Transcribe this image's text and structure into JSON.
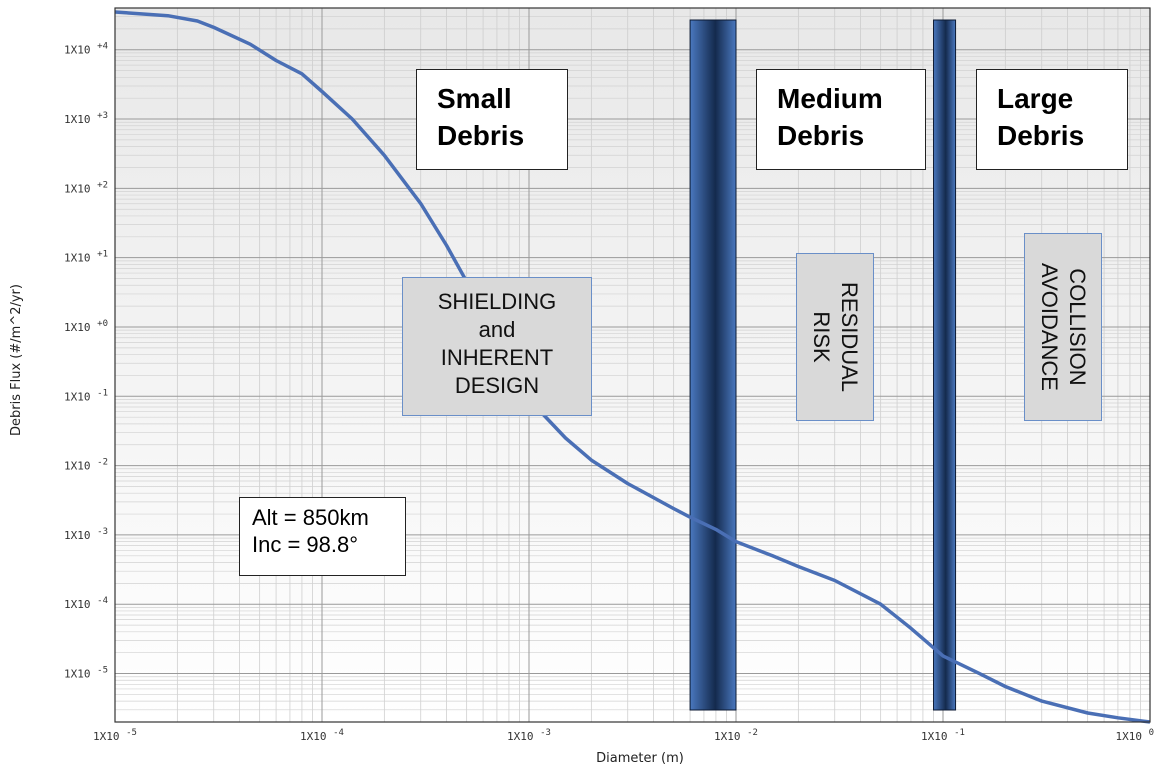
{
  "chart_data": {
    "type": "line",
    "title": "",
    "xlabel": "Diameter (m)",
    "ylabel": "Debris Flux (#/m^2/yr)",
    "xscale": "log",
    "yscale": "log",
    "xlim": [
      1e-05,
      1
    ],
    "ylim": [
      2e-06,
      40000
    ],
    "grid": true,
    "x_ticks": [
      {
        "value": 1e-05,
        "label": "1X10 -5"
      },
      {
        "value": 0.0001,
        "label": "1X10 -4"
      },
      {
        "value": 0.001,
        "label": "1X10 -3"
      },
      {
        "value": 0.01,
        "label": "1X10 -2"
      },
      {
        "value": 0.1,
        "label": "1X10 -1"
      },
      {
        "value": 1,
        "label": "1X10 0"
      }
    ],
    "y_ticks": [
      {
        "value": 10000,
        "label": "1X10 +4"
      },
      {
        "value": 1000,
        "label": "1X10 +3"
      },
      {
        "value": 100,
        "label": "1X10 +2"
      },
      {
        "value": 10,
        "label": "1X10 +1"
      },
      {
        "value": 1,
        "label": "1X10 +0"
      },
      {
        "value": 0.1,
        "label": "1X10 -1"
      },
      {
        "value": 0.01,
        "label": "1X10 -2"
      },
      {
        "value": 0.001,
        "label": "1X10 -3"
      },
      {
        "value": 0.0001,
        "label": "1X10 -4"
      },
      {
        "value": 1e-05,
        "label": "1X10 -5"
      }
    ],
    "series": [
      {
        "color": "#4a6fb5",
        "x": [
          1e-05,
          1.8e-05,
          2.5e-05,
          3e-05,
          4.5e-05,
          6e-05,
          8e-05,
          0.0001,
          0.00014,
          0.0002,
          0.0003,
          0.0004,
          0.0005,
          0.0006,
          0.0008,
          0.001,
          0.0015,
          0.002,
          0.003,
          0.005,
          0.006,
          0.008,
          0.01,
          0.015,
          0.02,
          0.03,
          0.05,
          0.07,
          0.1,
          0.15,
          0.2,
          0.3,
          0.5,
          0.7,
          1
        ],
        "y": [
          35000,
          31000,
          26000,
          21000,
          12000,
          7000,
          4500,
          2500,
          1000,
          300,
          60,
          15,
          4.5,
          1.3,
          0.3,
          0.09,
          0.025,
          0.012,
          0.0055,
          0.0024,
          0.0018,
          0.0012,
          0.0008,
          0.0005,
          0.00035,
          0.00022,
          0.0001,
          4.5e-05,
          1.8e-05,
          1e-05,
          6.5e-06,
          4e-06,
          2.7e-06,
          2.3e-06,
          2e-06
        ]
      }
    ],
    "bands": [
      {
        "x_from": 0.006,
        "x_to": 0.01,
        "color": "#2e5085"
      },
      {
        "x_from": 0.09,
        "x_to": 0.115,
        "color": "#2e5085"
      }
    ]
  },
  "annotations": {
    "small_debris": [
      "Small",
      "Debris"
    ],
    "medium_debris": [
      "Medium",
      "Debris"
    ],
    "large_debris": [
      "Large",
      "Debris"
    ],
    "shielding": [
      "SHIELDING",
      "and",
      "INHERENT",
      "DESIGN"
    ],
    "residual": [
      "RESIDUAL",
      "RISK"
    ],
    "collision": [
      "COLLISION",
      "AVOIDANCE"
    ],
    "orbit": [
      "Alt = 850km",
      "Inc = 98.8°"
    ]
  }
}
